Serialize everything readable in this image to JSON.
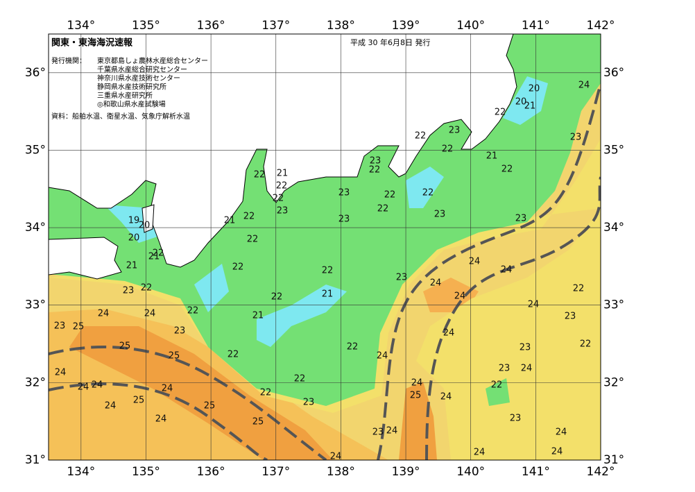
{
  "header": {
    "title": "関東・東海海況速報",
    "date": "平成 30 年6月8日 発行"
  },
  "issuers": {
    "label": "発行機関：",
    "names": [
      "東京都島しょ農林水産総合センター",
      "千葉県水産総合研究センター",
      "神奈川県水産技術センター",
      "静岡県水産技術研究所",
      "三重県水産研究所",
      "◎和歌山県水産試験場"
    ]
  },
  "source": "資料：船舶水温、衛星水温、気象庁解析水温",
  "map": {
    "xlim": [
      133.5,
      142
    ],
    "ylim": [
      31,
      36.5
    ],
    "lon_ticks": [
      {
        "value": 134,
        "label": "134°"
      },
      {
        "value": 135,
        "label": "135°"
      },
      {
        "value": 136,
        "label": "136°"
      },
      {
        "value": 137,
        "label": "137°"
      },
      {
        "value": 138,
        "label": "138°"
      },
      {
        "value": 139,
        "label": "139°"
      },
      {
        "value": 140,
        "label": "140°"
      },
      {
        "value": 141,
        "label": "141°"
      },
      {
        "value": 142,
        "label": "142°"
      }
    ],
    "lat_ticks": [
      {
        "value": 31,
        "label": "31°"
      },
      {
        "value": 32,
        "label": "32°"
      },
      {
        "value": 33,
        "label": "33°"
      },
      {
        "value": 34,
        "label": "34°"
      },
      {
        "value": 35,
        "label": "35°"
      },
      {
        "value": 36,
        "label": "36°"
      }
    ],
    "contour_labels": [
      20,
      24,
      20,
      21,
      22,
      22,
      23,
      22,
      23,
      21,
      22,
      23,
      22,
      22,
      21,
      22,
      23,
      22,
      22,
      22,
      22,
      23,
      23,
      23,
      23,
      19,
      20,
      21,
      22,
      20,
      22,
      22,
      21,
      21,
      22,
      22,
      24,
      24,
      23,
      24,
      23,
      22,
      22,
      21,
      24,
      22,
      24,
      24,
      24,
      22,
      21,
      23,
      23,
      25,
      23,
      24,
      25,
      22,
      22,
      23,
      25,
      22,
      24,
      23,
      24,
      24,
      22,
      24,
      24,
      24,
      22,
      24,
      22,
      25,
      24,
      25,
      23,
      24,
      25,
      24,
      23,
      25,
      23,
      24,
      24,
      24,
      24,
      24
    ]
  }
}
